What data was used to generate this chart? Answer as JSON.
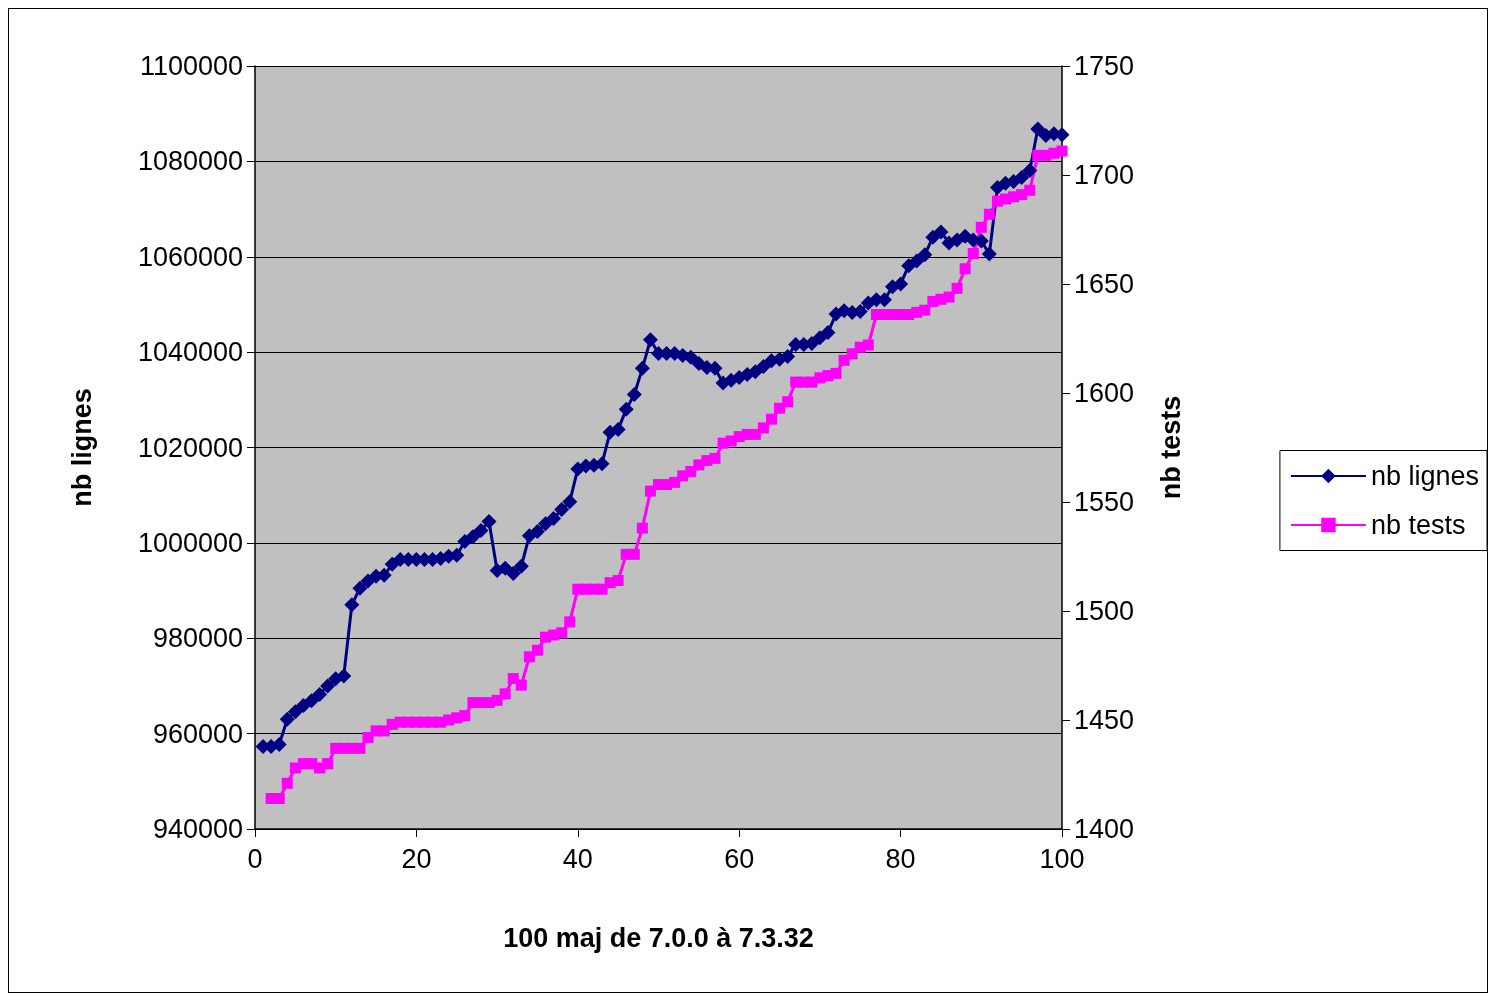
{
  "chart_data": {
    "type": "line",
    "xlabel": "100 maj de 7.0.0 à 7.3.32",
    "ylabel": "nb lignes",
    "y2label": "nb tests",
    "x": [
      1,
      2,
      3,
      4,
      5,
      6,
      7,
      8,
      9,
      10,
      11,
      12,
      13,
      14,
      15,
      16,
      17,
      18,
      19,
      20,
      21,
      22,
      23,
      24,
      25,
      26,
      27,
      28,
      29,
      30,
      31,
      32,
      33,
      34,
      35,
      36,
      37,
      38,
      39,
      40,
      41,
      42,
      43,
      44,
      45,
      46,
      47,
      48,
      49,
      50,
      51,
      52,
      53,
      54,
      55,
      56,
      57,
      58,
      59,
      60,
      61,
      62,
      63,
      64,
      65,
      66,
      67,
      68,
      69,
      70,
      71,
      72,
      73,
      74,
      75,
      76,
      77,
      78,
      79,
      80,
      81,
      82,
      83,
      84,
      85,
      86,
      87,
      88,
      89,
      90,
      91,
      92,
      93,
      94,
      95,
      96,
      97,
      98,
      99,
      100
    ],
    "xlim": [
      0,
      100
    ],
    "xticks": [
      0,
      20,
      40,
      60,
      80,
      100
    ],
    "ylim": [
      940000,
      1100000
    ],
    "yticks": [
      940000,
      960000,
      980000,
      1000000,
      1020000,
      1040000,
      1060000,
      1080000,
      1100000
    ],
    "y2lim": [
      1400,
      1750
    ],
    "y2ticks": [
      1400,
      1450,
      1500,
      1550,
      1600,
      1650,
      1700,
      1750
    ],
    "grid": "y",
    "legend": "right",
    "series": [
      {
        "name": "nb lignes",
        "color": "#000080",
        "marker": "diamond",
        "values": [
          957300,
          957300,
          957700,
          963000,
          964600,
          965900,
          966900,
          968200,
          970000,
          971500,
          972100,
          987000,
          990500,
          992000,
          993000,
          993200,
          995500,
          996500,
          996500,
          996500,
          996500,
          996500,
          996700,
          997200,
          997400,
          1000300,
          1001300,
          1002600,
          1004500,
          994200,
          994700,
          993600,
          995100,
          1001500,
          1002400,
          1004000,
          1005100,
          1007000,
          1008600,
          1015500,
          1016100,
          1016300,
          1016600,
          1023200,
          1023800,
          1028000,
          1031100,
          1036600,
          1042600,
          1039700,
          1039700,
          1039700,
          1039300,
          1038900,
          1037600,
          1036800,
          1036600,
          1033500,
          1034100,
          1034700,
          1035300,
          1035900,
          1037000,
          1038200,
          1038500,
          1039100,
          1041600,
          1041600,
          1041800,
          1043000,
          1044100,
          1048000,
          1048700,
          1048300,
          1048500,
          1050300,
          1051000,
          1051000,
          1053700,
          1054300,
          1058100,
          1059100,
          1060400,
          1064100,
          1065200,
          1062900,
          1063500,
          1064300,
          1063500,
          1063300,
          1060600,
          1074500,
          1075400,
          1075800,
          1076600,
          1078100,
          1086800,
          1085400,
          1085800,
          1085600
        ]
      },
      {
        "name": "nb tests",
        "color": "#ff00ff",
        "marker": "square",
        "axis": "y2",
        "values": [
          null,
          1414,
          1414,
          1421,
          1428,
          1430,
          1430,
          1428,
          1430,
          1437,
          1437,
          1437,
          1437,
          1442,
          1445,
          1445,
          1448,
          1449,
          1449,
          1449,
          1449,
          1449,
          1449,
          1450,
          1451,
          1452,
          1458,
          1458,
          1458,
          1459,
          1462,
          1469,
          1466,
          1479,
          1482,
          1488,
          1489,
          1490,
          1495,
          1510,
          1510,
          1510,
          1510,
          1513,
          1514,
          1526,
          1526,
          1538,
          1555,
          1558,
          1558,
          1559,
          1562,
          1564,
          1567,
          1569,
          1570,
          1577,
          1578,
          1580,
          1581,
          1581,
          1584,
          1588,
          1593,
          1596,
          1605,
          1605,
          1605,
          1607,
          1608,
          1609,
          1615,
          1618,
          1621,
          1622,
          1636,
          1636,
          1636,
          1636,
          1636,
          1637,
          1638,
          1642,
          1643,
          1644,
          1648,
          1657,
          1664,
          1676,
          1682,
          1688,
          1689,
          1690,
          1691,
          1693,
          1709,
          1709,
          1710,
          1711
        ]
      }
    ]
  }
}
